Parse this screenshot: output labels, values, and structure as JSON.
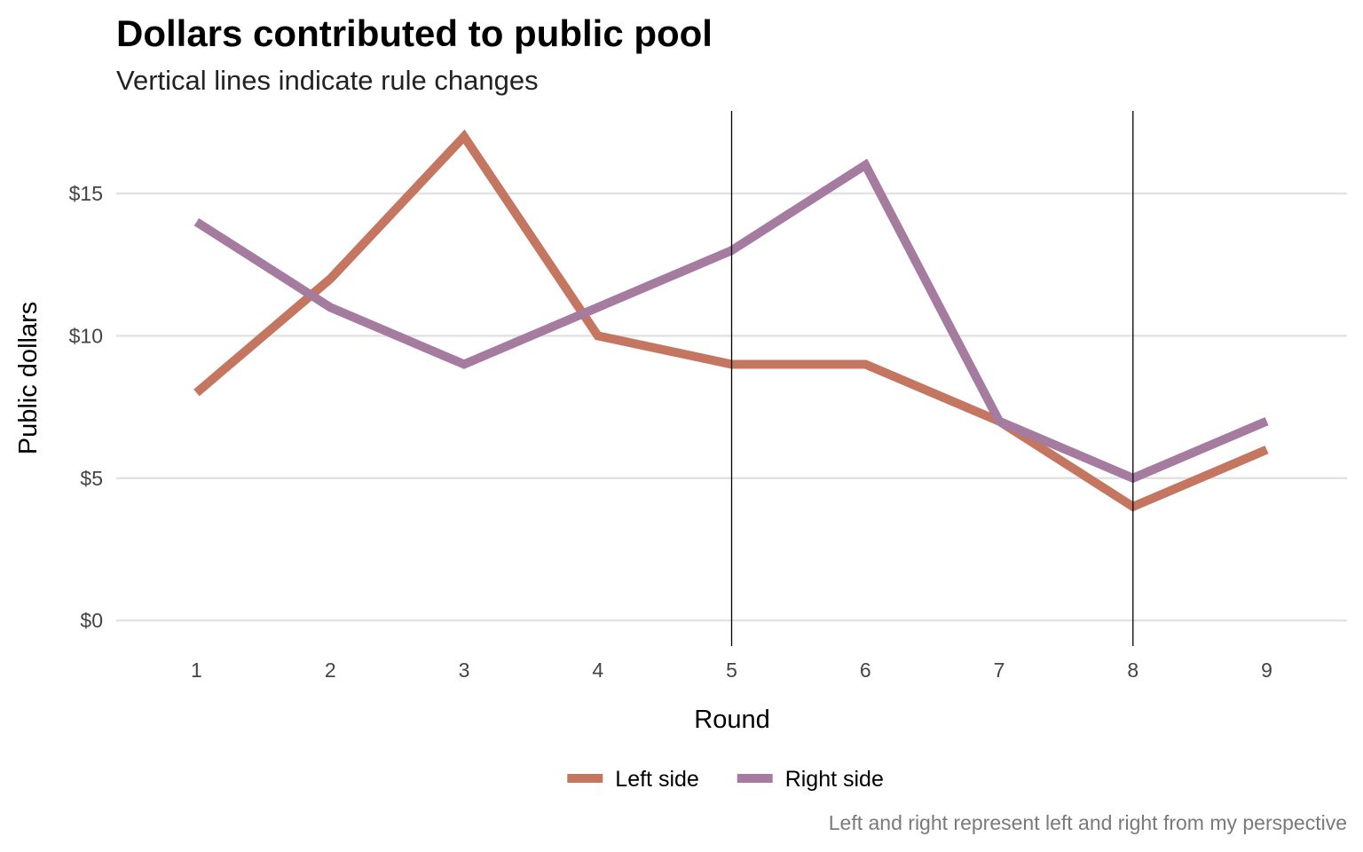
{
  "chart_data": {
    "type": "line",
    "title": "Dollars contributed to public pool",
    "subtitle": "Vertical lines indicate rule changes",
    "xlabel": "Round",
    "ylabel": "Public dollars",
    "caption": "Left and right represent left and right from my perspective",
    "x": [
      1,
      2,
      3,
      4,
      5,
      6,
      7,
      8,
      9
    ],
    "x_ticks": [
      "1",
      "2",
      "3",
      "4",
      "5",
      "6",
      "7",
      "8",
      "9"
    ],
    "y_ticks": [
      {
        "value": 0,
        "label": "$0"
      },
      {
        "value": 5,
        "label": "$5"
      },
      {
        "value": 10,
        "label": "$10"
      },
      {
        "value": 15,
        "label": "$15"
      }
    ],
    "xlim": [
      0.4,
      9.6
    ],
    "ylim": [
      -0.9,
      17.9
    ],
    "vertical_lines": [
      5,
      8
    ],
    "grid": "horizontal major",
    "legend_position": "bottom",
    "series": [
      {
        "name": "Left side",
        "color": "#c47661",
        "values": [
          8,
          12,
          17,
          10,
          9,
          9,
          7,
          4,
          6
        ]
      },
      {
        "name": "Right side",
        "color": "#a57c9f",
        "values": [
          14,
          11,
          9,
          11,
          13,
          16,
          7,
          5,
          7
        ]
      }
    ]
  }
}
